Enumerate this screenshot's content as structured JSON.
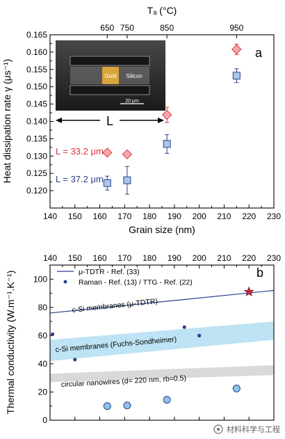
{
  "chart_data": [
    {
      "panel_label": "a",
      "type": "scatter",
      "ylabel": "Heat dissipation rate γ (μs⁻¹)",
      "xlabel": "Grain size (nm)",
      "top_xlabel": "Tₐ (°C)",
      "xlim": [
        140,
        230
      ],
      "ylim": [
        0.115,
        0.165
      ],
      "x_ticks": [
        "140",
        "150",
        "160",
        "170",
        "180",
        "190",
        "200",
        "210",
        "220",
        "230"
      ],
      "y_ticks": [
        "0.120",
        "0.125",
        "0.130",
        "0.135",
        "0.140",
        "0.145",
        "0.150",
        "0.155",
        "0.160",
        "0.165"
      ],
      "top_ticks": [
        {
          "label": "650",
          "x": 163
        },
        {
          "label": "750",
          "x": 171
        },
        {
          "label": "850",
          "x": 187
        },
        {
          "label": "950",
          "x": 215
        }
      ],
      "series": [
        {
          "name": "L = 33.2 μm",
          "color": "#d9333f",
          "marker": "diamond",
          "fill": "#f5aaaa",
          "points": [
            {
              "x": 163,
              "y": 0.131,
              "err": 0
            },
            {
              "x": 171,
              "y": 0.1305,
              "err": 0
            },
            {
              "x": 187,
              "y": 0.1419,
              "err": 0.0022
            },
            {
              "x": 215,
              "y": 0.1608,
              "err": 0.0015
            }
          ]
        },
        {
          "name": "L = 37.2 μm",
          "color": "#2b3f8f",
          "marker": "square",
          "fill": "#a9c7e8",
          "points": [
            {
              "x": 163,
              "y": 0.1222,
              "err": 0.002
            },
            {
              "x": 171,
              "y": 0.123,
              "err": 0.004
            },
            {
              "x": 187,
              "y": 0.1335,
              "err": 0.0027
            },
            {
              "x": 215,
              "y": 0.1532,
              "err": 0.002
            }
          ]
        }
      ],
      "inset": {
        "gold_label": "Gold",
        "silicon_label": "Silicon",
        "scalebar_label": "20 μm",
        "length_label": "L"
      }
    },
    {
      "panel_label": "b",
      "type": "scatter",
      "ylabel": "Thermal conductivity (W.m⁻¹.K⁻¹)",
      "xlim": [
        140,
        230
      ],
      "ylim": [
        0,
        110
      ],
      "x_ticks": [
        "140",
        "150",
        "160",
        "170",
        "180",
        "190",
        "200",
        "210",
        "220",
        "230"
      ],
      "y_ticks": [
        "0",
        "20",
        "40",
        "60",
        "80",
        "100"
      ],
      "legend": [
        {
          "label": "μ-TDTR - Ref. (33)",
          "kind": "line",
          "color": "#2b3f8f"
        },
        {
          "label": "Raman - Ref. (13) / TTG - Ref. (22)",
          "kind": "dot",
          "color": "#2b3f8f"
        }
      ],
      "tdtr_line": {
        "x": [
          140,
          230
        ],
        "y": [
          76,
          92
        ],
        "color": "#2b3f8f",
        "label": "c-Si membranes (μ-TDTR)"
      },
      "fuchs_band": {
        "x": [
          140,
          230
        ],
        "lower": [
          42,
          57
        ],
        "upper": [
          57,
          70
        ],
        "color": "#bde3f4",
        "label": "c-Si membranes (Fuchs-Sondheimer)"
      },
      "nanowire_band": {
        "x": [
          140,
          230
        ],
        "lower": [
          27,
          32
        ],
        "upper": [
          33,
          39
        ],
        "color": "#d9d9d9",
        "label": "circular nanowires (d= 220 nm, rb=0.5)"
      },
      "raman_points": [
        {
          "x": 141,
          "y": 61
        },
        {
          "x": 150,
          "y": 43
        },
        {
          "x": 194,
          "y": 66
        },
        {
          "x": 200,
          "y": 60
        }
      ],
      "star_point": {
        "x": 220,
        "y": 91,
        "color": "#c8283c"
      },
      "circle_points": {
        "color": "#2b3f8f",
        "fill": "#8fc3ea",
        "points": [
          {
            "x": 163,
            "y": 10
          },
          {
            "x": 171,
            "y": 10.5
          },
          {
            "x": 187,
            "y": 14.5
          },
          {
            "x": 215,
            "y": 22.5
          }
        ]
      }
    }
  ],
  "watermark": "材料科学与工程"
}
